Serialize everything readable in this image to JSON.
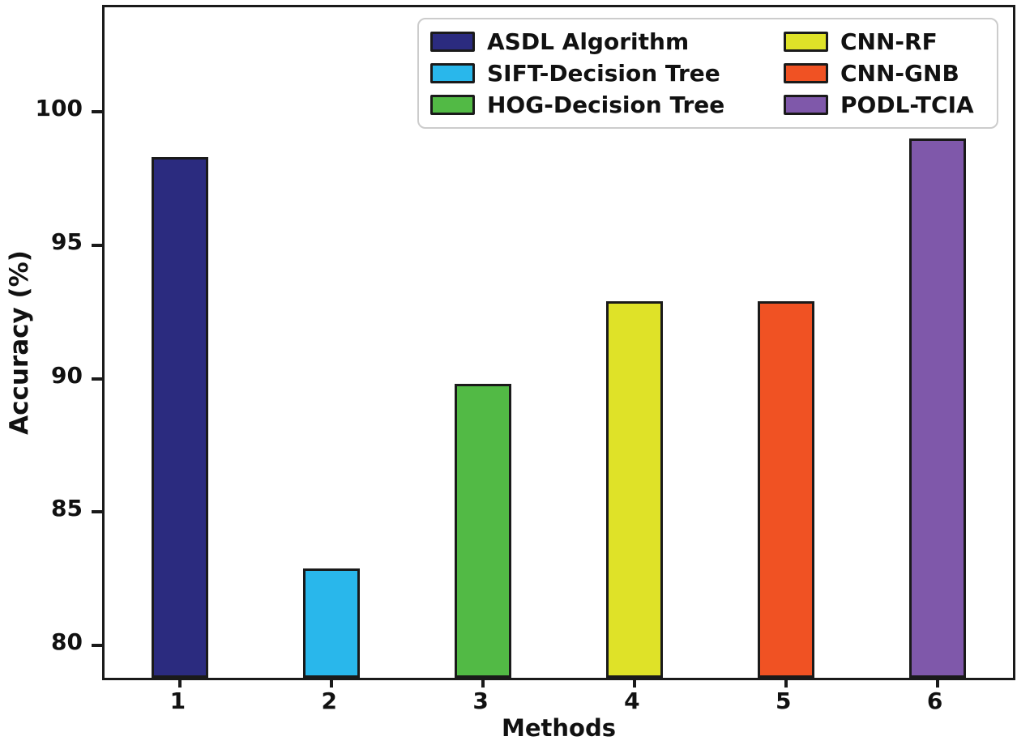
{
  "chart_data": {
    "type": "bar",
    "title": "",
    "xlabel": "Methods",
    "ylabel": "Accuracy (%)",
    "categories": [
      "1",
      "2",
      "3",
      "4",
      "5",
      "6"
    ],
    "values": [
      98.3,
      82.9,
      89.8,
      92.9,
      92.9,
      99.0
    ],
    "bar_colors": [
      "#2b2b7f",
      "#29b7eb",
      "#52ba45",
      "#dfe228",
      "#f05223",
      "#7f58aa"
    ],
    "legend": [
      {
        "label": "ASDL Algorithm",
        "color": "#2b2b7f"
      },
      {
        "label": "SIFT-Decision Tree",
        "color": "#29b7eb"
      },
      {
        "label": "HOG-Decision Tree",
        "color": "#52ba45"
      },
      {
        "label": "CNN-RF",
        "color": "#dfe228"
      },
      {
        "label": "CNN-GNB",
        "color": "#f05223"
      },
      {
        "label": "PODL-TCIA",
        "color": "#7f58aa"
      }
    ],
    "legend_position": "upper-center, 2 columns",
    "yticks": [
      80,
      85,
      90,
      95,
      100
    ],
    "ylim": [
      78.8,
      103.9
    ],
    "grid": false,
    "axis_color": "#1a1a1a"
  }
}
